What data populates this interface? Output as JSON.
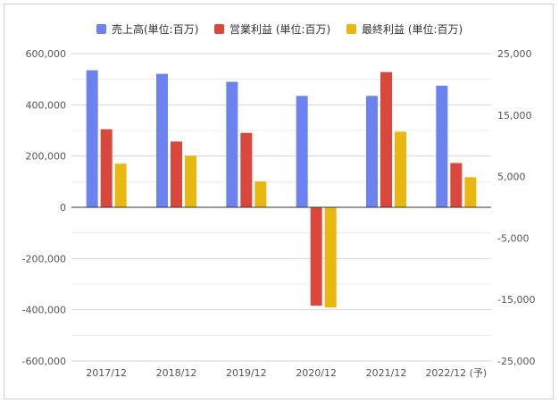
{
  "chart_data": {
    "type": "bar",
    "categories": [
      "2017/12",
      "2018/12",
      "2019/12",
      "2020/12",
      "2021/12",
      "2022/12 (予)"
    ],
    "series": [
      {
        "name": "売上高(単位:百万)",
        "axis": "left",
        "color": "#6b82ef",
        "values": [
          535000,
          521000,
          490000,
          435000,
          435000,
          475000
        ]
      },
      {
        "name": "営業利益 (単位:百万)",
        "axis": "right",
        "color": "#d9473d",
        "values": [
          12700,
          10700,
          12100,
          -16000,
          22000,
          7200
        ]
      },
      {
        "name": "最終利益 (単位:百万)",
        "axis": "right",
        "color": "#e8b710",
        "values": [
          7100,
          8400,
          4200,
          -16300,
          12300,
          4900
        ]
      }
    ],
    "left_axis": {
      "ylim": [
        -600000,
        600000
      ],
      "ticks": [
        "600,000",
        "400,000",
        "200,000",
        "0",
        "-200,000",
        "-400,000",
        "-600,000"
      ]
    },
    "right_axis": {
      "ylim": [
        -25000,
        25000
      ],
      "ticks": [
        "25,000",
        "15,000",
        "5,000",
        "-5,000",
        "-15,000",
        "-25,000"
      ]
    },
    "legend_position": "top",
    "grid": true
  }
}
